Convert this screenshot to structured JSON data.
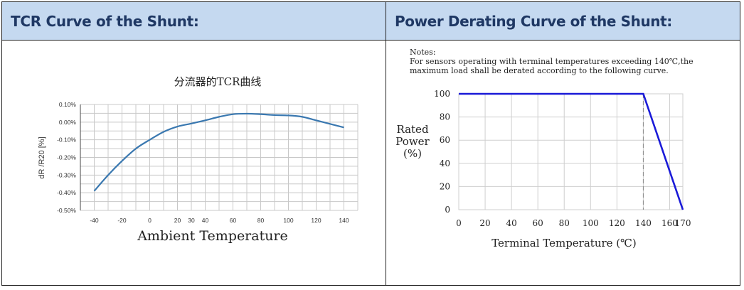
{
  "headers": {
    "left": "TCR Curve of the Shunt:",
    "right": "Power Derating Curve of the Shunt:"
  },
  "notes": {
    "line1": "Notes:",
    "line2": "For sensors operating with terminal temperatures exceeding 140℃,the",
    "line3": "maximum load shall be derated according to the following curve."
  },
  "chart_data": [
    {
      "type": "line",
      "title": "分流器的TCR曲线",
      "xlabel": "Ambient Temperature",
      "ylabel": "dR /R20 [%]",
      "xlim": [
        -50,
        150
      ],
      "ylim": [
        -0.5,
        0.1
      ],
      "x_ticks": [
        -40,
        -20,
        0,
        20,
        30,
        40,
        60,
        80,
        100,
        120,
        140
      ],
      "x_tick_labels": [
        "-40",
        "-20",
        "0",
        "20",
        "30",
        "40",
        "60",
        "80",
        "100",
        "120",
        "140"
      ],
      "y_ticks": [
        0.1,
        0.0,
        -0.1,
        -0.2,
        -0.3,
        -0.4,
        -0.5
      ],
      "y_tick_labels": [
        "0.10%",
        "0.00%",
        "-0.10%",
        "-0.20%",
        "-0.30%",
        "-0.40%",
        "-0.50%"
      ],
      "grid": true,
      "color": "#3a78b0",
      "series": [
        {
          "x": [
            -40,
            -30,
            -20,
            -10,
            0,
            10,
            20,
            30,
            40,
            50,
            60,
            70,
            80,
            90,
            100,
            110,
            120,
            130,
            140
          ],
          "y": [
            -0.39,
            -0.3,
            -0.22,
            -0.15,
            -0.1,
            -0.055,
            -0.025,
            -0.008,
            0.01,
            0.03,
            0.045,
            0.048,
            0.045,
            0.04,
            0.038,
            0.03,
            0.01,
            -0.01,
            -0.03
          ]
        }
      ]
    },
    {
      "type": "line",
      "title": "",
      "xlabel": "Terminal Temperature (℃)",
      "ylabel_lines": [
        "Rated",
        "Power",
        "(%)"
      ],
      "xlim": [
        0,
        170
      ],
      "ylim": [
        0,
        100
      ],
      "x_ticks": [
        0,
        20,
        40,
        60,
        80,
        100,
        120,
        140,
        160,
        170
      ],
      "x_tick_labels": [
        "0",
        "20",
        "40",
        "60",
        "80",
        "100",
        "120",
        "140",
        "160",
        "170"
      ],
      "y_ticks": [
        0,
        20,
        40,
        60,
        80,
        100
      ],
      "y_tick_labels": [
        "0",
        "20",
        "40",
        "60",
        "80",
        "100"
      ],
      "grid": true,
      "color": "#1a1ad8",
      "series": [
        {
          "x": [
            0,
            140,
            170
          ],
          "y": [
            100,
            100,
            0
          ]
        }
      ],
      "reference_line_x": 140
    }
  ]
}
